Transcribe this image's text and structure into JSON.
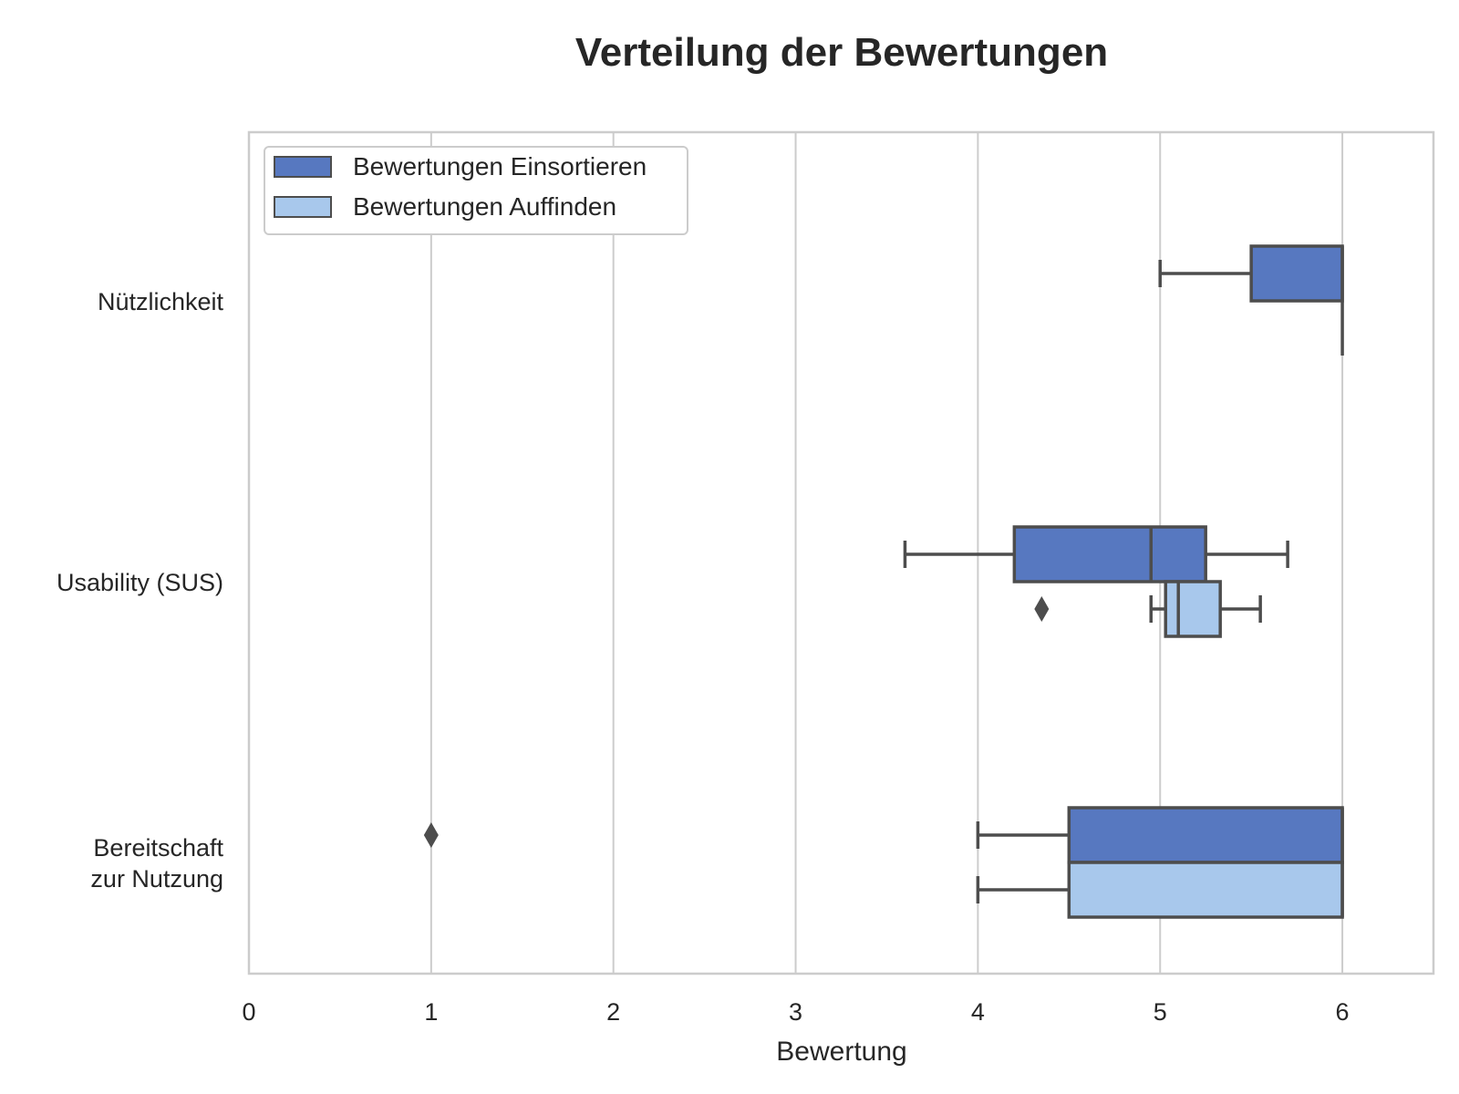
{
  "chart_data": {
    "type": "boxplot",
    "orientation": "horizontal",
    "title": "Verteilung der Bewertungen",
    "xlabel": "Bewertung",
    "ylabel": "",
    "xlim": [
      0,
      6.5
    ],
    "xticks": [
      "0",
      "1",
      "2",
      "3",
      "4",
      "5",
      "6"
    ],
    "categories": [
      "Nützlichkeit",
      "Usability (SUS)",
      "Bereitschaft\nzur Nutzung"
    ],
    "grid": "vertical",
    "legend_position": "top-left",
    "series": [
      {
        "name": "Bewertungen Einsortieren",
        "color": "#5778c0",
        "boxes": [
          {
            "category": "Nützlichkeit",
            "whisker_low": 5.0,
            "q1": 5.5,
            "median": 6.0,
            "q3": 6.0,
            "whisker_high": 6.0,
            "outliers": []
          },
          {
            "category": "Usability (SUS)",
            "whisker_low": 3.6,
            "q1": 4.2,
            "median": 4.95,
            "q3": 5.25,
            "whisker_high": 5.7,
            "outliers": []
          },
          {
            "category": "Bereitschaft\nzur Nutzung",
            "whisker_low": 4.0,
            "q1": 4.5,
            "median": 6.0,
            "q3": 6.0,
            "whisker_high": 6.0,
            "outliers": [
              1.0
            ]
          }
        ]
      },
      {
        "name": "Bewertungen Auffinden",
        "color": "#a8c8ec",
        "boxes": [
          {
            "category": "Nützlichkeit",
            "whisker_low": 6.0,
            "q1": 6.0,
            "median": 6.0,
            "q3": 6.0,
            "whisker_high": 6.0,
            "outliers": []
          },
          {
            "category": "Usability (SUS)",
            "whisker_low": 4.95,
            "q1": 5.03,
            "median": 5.1,
            "q3": 5.33,
            "whisker_high": 5.55,
            "outliers": [
              4.35
            ]
          },
          {
            "category": "Bereitschaft\nzur Nutzung",
            "whisker_low": 4.0,
            "q1": 4.5,
            "median": 6.0,
            "q3": 6.0,
            "whisker_high": 6.0,
            "outliers": []
          }
        ]
      }
    ]
  }
}
